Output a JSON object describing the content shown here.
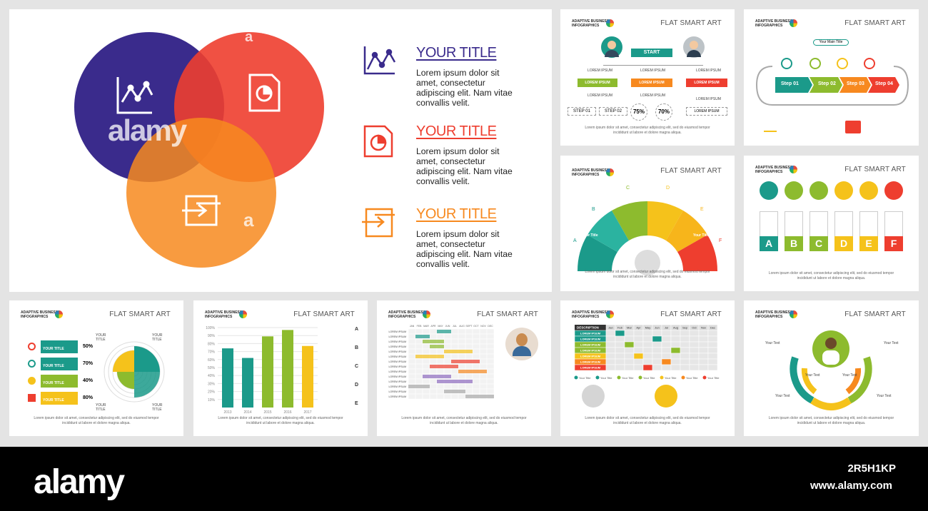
{
  "colors": {
    "purple": "#3a2b8c",
    "red": "#ee3e2f",
    "orange": "#f7891f",
    "teal": "#1b9a8a",
    "green": "#8dbb2e",
    "yellow": "#f5c21b"
  },
  "main_slide": {
    "watermark": "alamy",
    "watermark_small": "a",
    "items": [
      {
        "title": "YOUR TITLE",
        "body": "Lorem ipsum dolor sit amet, consectetur adipiscing elit. Nam vitae convallis velit.",
        "icon": "line-chart-icon"
      },
      {
        "title": "YOUR TITLE",
        "body": "Lorem ipsum dolor sit amet, consectetur adipiscing elit. Nam vitae convallis velit.",
        "icon": "pie-document-icon"
      },
      {
        "title": "YOUR TITLE",
        "body": "Lorem ipsum dolor sit amet, consectetur adipiscing elit. Nam vitae convallis velit.",
        "icon": "exchange-arrows-icon"
      }
    ]
  },
  "brand": {
    "line1": "ADAPTIVE BUSINESS",
    "line2": "INFOGRAPHICS"
  },
  "header_label": "FLAT SMART ART",
  "footer": "Lorem ipsum dolor sit amet, consectetur adipiscing elit, sed do eiusmod tempor incididunt ut labore et dolore magna aliqua.",
  "org_chart": {
    "start": "START",
    "lorem": "LOREM IPSUM",
    "step1": "STEP 01",
    "step2": "STEP 02",
    "pct1": "75%",
    "pct2": "70%"
  },
  "process": {
    "main_title": "Your Main Title",
    "steps": [
      "Step 01",
      "Step 02",
      "Step 03",
      "Step 04"
    ]
  },
  "semicircle": {
    "labels": [
      "A",
      "B",
      "C",
      "D",
      "E",
      "F"
    ],
    "segment_title": "Your Title"
  },
  "people_letters": [
    "A",
    "B",
    "C",
    "D",
    "E",
    "F"
  ],
  "radial": {
    "rows": [
      {
        "label": "YOUR TITLE",
        "value": "50%"
      },
      {
        "label": "YOUR TITLE",
        "value": "70%"
      },
      {
        "label": "YOUR TITLE",
        "value": "40%"
      },
      {
        "label": "YOUR TITLE",
        "value": "80%"
      }
    ],
    "corner": "YOUR TITLE"
  },
  "bar_chart": {
    "categories": [
      "2013",
      "2014",
      "2015",
      "2016",
      "2017"
    ],
    "values": [
      74,
      62,
      89,
      97,
      77
    ],
    "colors": [
      "#1b9a8a",
      "#1b9a8a",
      "#8dbb2e",
      "#8dbb2e",
      "#f5c21b"
    ],
    "ylim": [
      0,
      100
    ],
    "yticks": [
      "100%",
      "90%",
      "80%",
      "70%",
      "60%",
      "50%",
      "40%",
      "30%",
      "20%",
      "10%"
    ],
    "side_labels": [
      "A",
      "B",
      "C",
      "D",
      "E"
    ]
  },
  "gantt": {
    "row_label": "LOREM IPSUM",
    "months": [
      "JAN",
      "FEB",
      "MAR",
      "APR",
      "MAY",
      "JUN",
      "JUL",
      "AUG",
      "SEPT",
      "OCT",
      "NOV",
      "DEC"
    ]
  },
  "matrix": {
    "header": "DESCRIPTION",
    "months": [
      "Jan",
      "Feb",
      "Mar",
      "Apr",
      "May",
      "Jun",
      "Jul",
      "Aug",
      "Sep",
      "Oct",
      "Nov",
      "Dec"
    ],
    "row_label": "LOREM IPSUM",
    "legend": "Your Title"
  },
  "cycle": {
    "label": "Your Text"
  },
  "stock": {
    "logo": "alamy",
    "id": "2R5H1KP",
    "url": "www.alamy.com"
  }
}
